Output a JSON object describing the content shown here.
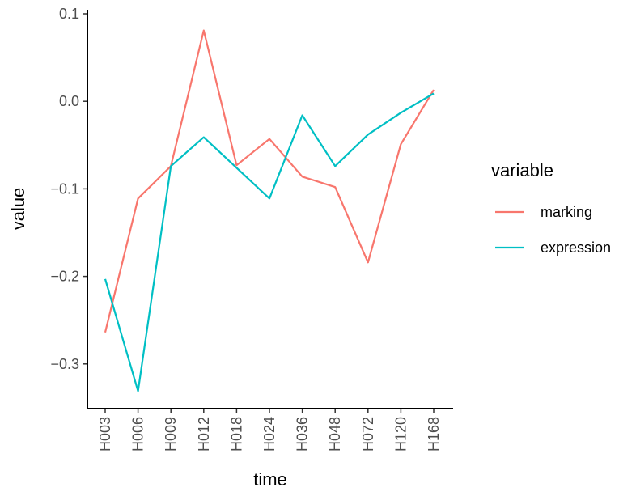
{
  "chart_data": {
    "type": "line",
    "xlabel": "time",
    "ylabel": "value",
    "categories": [
      "H003",
      "H006",
      "H009",
      "H012",
      "H018",
      "H024",
      "H036",
      "H048",
      "H072",
      "H120",
      "H168"
    ],
    "ylim": [
      -0.35,
      0.1
    ],
    "yticks": [
      0.1,
      0.0,
      -0.1,
      -0.2,
      -0.3
    ],
    "ytick_labels": [
      "0.1",
      "0.0",
      "−0.1",
      "−0.2",
      "−0.3"
    ],
    "grid": false,
    "legend": {
      "title": "variable",
      "position": "right"
    },
    "series": [
      {
        "name": "marking",
        "color": "#F8766D",
        "values": [
          -0.264,
          -0.111,
          -0.074,
          0.081,
          -0.073,
          -0.043,
          -0.086,
          -0.098,
          -0.184,
          -0.049,
          0.013
        ]
      },
      {
        "name": "expression",
        "color": "#00BFC4",
        "values": [
          -0.203,
          -0.331,
          -0.074,
          -0.041,
          -0.076,
          -0.111,
          -0.016,
          -0.074,
          -0.038,
          -0.013,
          0.009
        ]
      }
    ]
  }
}
